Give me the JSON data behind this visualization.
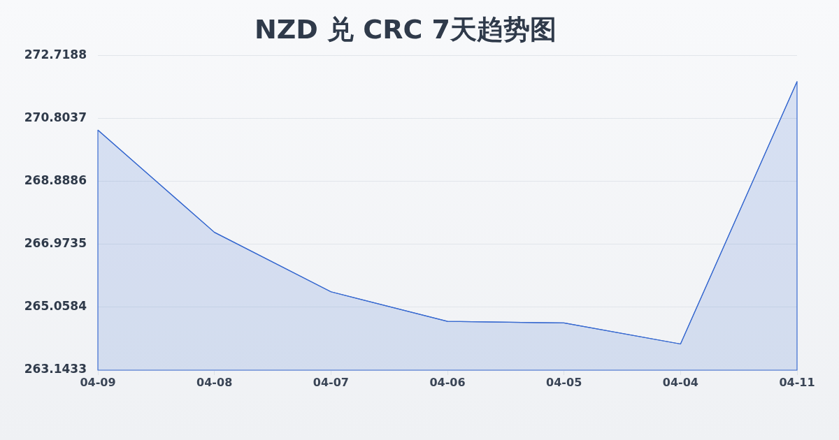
{
  "chart_data": {
    "type": "area",
    "title": "NZD 兑 CRC 7天趋势图",
    "categories": [
      "04-09",
      "04-08",
      "04-07",
      "04-06",
      "04-05",
      "04-04",
      "04-11"
    ],
    "values": [
      270.45,
      267.34,
      265.53,
      264.63,
      264.58,
      263.94,
      271.93
    ],
    "color": "#3a6bd0",
    "ylim": [
      263.1433,
      272.7188
    ],
    "yticks": [
      263.1433,
      265.0584,
      266.9735,
      268.8886,
      270.8037,
      272.7188
    ],
    "grid": "y"
  }
}
